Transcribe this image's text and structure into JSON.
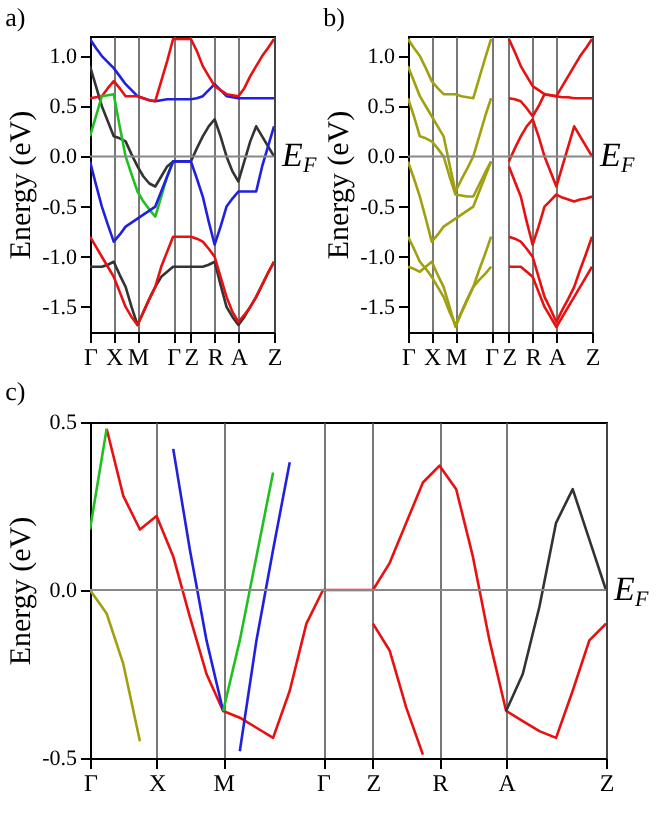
{
  "chart_data": [
    {
      "type": "line",
      "title": "a)",
      "ylabel": "Energy (eV)",
      "categories": [
        "Γ",
        null,
        null,
        null,
        "X",
        null,
        null,
        null,
        "M",
        null,
        null,
        null,
        null,
        null,
        "Γ",
        null,
        null,
        "Z",
        null,
        null,
        null,
        "R",
        null,
        null,
        null,
        "A",
        null,
        null,
        null,
        null,
        null,
        "Z"
      ],
      "ylim": [
        -1.75,
        1.2
      ],
      "yticks": [
        -1.5,
        {
          "value": -1,
          "label": "-1.0"
        },
        -0.5,
        {
          "value": 0,
          "label": "0.0"
        },
        0.5,
        {
          "value": 1,
          "label": "1.0"
        }
      ],
      "grid": "x",
      "ref_lines": [
        {
          "axis": "y",
          "value": 0,
          "label": "E$_{F}$",
          "color": "#888888"
        }
      ],
      "series": [
        {
          "color": "#2020e0",
          "values": [
            1.17,
            1.08,
            1.0,
            0.94,
            0.88,
            0.8,
            0.72,
            0.66,
            0.6,
            0.58,
            0.56,
            0.55,
            0.56,
            0.57,
            0.57,
            0.57,
            0.57,
            0.57,
            0.58,
            0.6,
            0.66,
            0.72,
            0.66,
            0.6,
            0.59,
            0.58,
            0.58,
            0.58,
            0.58,
            0.58,
            0.58,
            0.58
          ]
        },
        {
          "color": "#333333",
          "values": [
            0.9,
            0.7,
            0.5,
            0.35,
            0.2,
            0.18,
            0.15,
            0.02,
            -0.1,
            -0.2,
            -0.27,
            -0.3,
            -0.2,
            -0.1,
            -0.05,
            -0.05,
            -0.05,
            -0.05,
            0.08,
            0.2,
            0.3,
            0.37,
            0.2,
            0.0,
            -0.15,
            -0.25,
            -0.05,
            0.15,
            0.3,
            0.2,
            0.1,
            0.0
          ]
        },
        {
          "color": "#e81010",
          "values": [
            0.58,
            0.59,
            0.6,
            0.68,
            0.75,
            0.68,
            0.6,
            0.6,
            0.6,
            0.58,
            0.56,
            0.55,
            0.75,
            0.95,
            1.17,
            1.17,
            1.17,
            1.17,
            1.05,
            0.9,
            0.8,
            0.7,
            0.66,
            0.62,
            0.61,
            0.6,
            0.68,
            0.8,
            0.9,
            1.0,
            1.08,
            1.17
          ]
        },
        {
          "color": "#20c020",
          "values": [
            0.2,
            0.4,
            0.6,
            0.61,
            0.62,
            0.3,
            0.0,
            -0.18,
            -0.35,
            -0.45,
            -0.53,
            -0.6,
            -0.4,
            -0.2,
            -0.05,
            null,
            null,
            null,
            null,
            null,
            null,
            null,
            null,
            null,
            null,
            null,
            null,
            null,
            null,
            null,
            null,
            null
          ]
        },
        {
          "color": "#2020e0",
          "values": [
            -0.05,
            -0.28,
            -0.5,
            -0.68,
            -0.85,
            -0.78,
            -0.7,
            -0.66,
            -0.62,
            -0.58,
            -0.54,
            -0.5,
            -0.35,
            -0.2,
            -0.05,
            -0.05,
            -0.05,
            -0.05,
            -0.22,
            -0.4,
            -0.65,
            -0.88,
            -0.7,
            -0.5,
            -0.42,
            -0.35,
            -0.35,
            -0.35,
            -0.35,
            -0.1,
            0.1,
            0.3
          ]
        },
        {
          "color": "#333333",
          "values": [
            -1.1,
            -1.1,
            -1.1,
            -1.08,
            -1.05,
            -1.18,
            -1.3,
            -1.5,
            -1.68,
            -1.55,
            -1.42,
            -1.3,
            -1.2,
            -1.15,
            -1.1,
            -1.1,
            -1.1,
            -1.1,
            -1.1,
            -1.1,
            -1.08,
            -1.05,
            -1.28,
            -1.5,
            -1.6,
            -1.68,
            -1.6,
            -1.5,
            -1.4,
            -1.28,
            -1.16,
            -1.05
          ]
        },
        {
          "color": "#e81010",
          "values": [
            -0.8,
            -0.9,
            -1.0,
            -1.1,
            -1.2,
            -1.35,
            -1.5,
            -1.6,
            -1.68,
            -1.55,
            -1.42,
            -1.3,
            -1.1,
            -0.95,
            -0.8,
            -0.8,
            -0.8,
            -0.8,
            -0.82,
            -0.85,
            -0.92,
            -1.0,
            -1.2,
            -1.4,
            -1.55,
            -1.65,
            -1.58,
            -1.5,
            -1.4,
            -1.28,
            -1.16,
            -1.05
          ]
        }
      ]
    },
    {
      "type": "line",
      "title": "b)",
      "ylabel": "Energy (eV)",
      "categories": [
        "Γ",
        null,
        null,
        null,
        "X",
        null,
        null,
        null,
        "M",
        null,
        null,
        null,
        null,
        null,
        "Γ",
        null,
        null,
        "Z",
        null,
        null,
        null,
        "R",
        null,
        null,
        null,
        "A",
        null,
        null,
        null,
        null,
        null,
        "Z"
      ],
      "ylim": [
        -1.75,
        1.2
      ],
      "yticks": [
        -1.5,
        {
          "value": -1,
          "label": "-1.0"
        },
        -0.5,
        {
          "value": 0,
          "label": "0.0"
        },
        0.5,
        {
          "value": 1,
          "label": "1.0"
        }
      ],
      "grid": "x",
      "ref_lines": [
        {
          "axis": "y",
          "value": 0,
          "label": "E$_{F}$",
          "color": "#888888"
        }
      ],
      "series": [
        {
          "color": "#a0a010",
          "values": [
            1.17,
            1.08,
            1.0,
            0.88,
            0.75,
            0.68,
            0.62,
            0.62,
            0.62,
            0.6,
            0.59,
            0.58,
            0.78,
            0.98,
            1.17,
            null,
            null,
            null,
            null,
            null,
            null,
            null,
            null,
            null,
            null,
            null,
            null,
            null,
            null,
            null,
            null,
            null
          ]
        },
        {
          "color": "#a0a010",
          "values": [
            0.9,
            0.75,
            0.6,
            0.5,
            0.4,
            0.3,
            0.2,
            -0.08,
            -0.35,
            -0.23,
            -0.12,
            0.0,
            0.2,
            0.4,
            0.58,
            null,
            null,
            null,
            null,
            null,
            null,
            null,
            null,
            null,
            null,
            null,
            null,
            null,
            null,
            null,
            null,
            null
          ]
        },
        {
          "color": "#a0a010",
          "values": [
            0.58,
            0.4,
            0.2,
            0.18,
            0.15,
            0.08,
            0.0,
            -0.2,
            -0.38,
            -0.39,
            -0.4,
            -0.4,
            -0.28,
            -0.16,
            -0.05,
            null,
            null,
            null,
            null,
            null,
            null,
            null,
            null,
            null,
            null,
            null,
            null,
            null,
            null,
            null,
            null,
            null
          ]
        },
        {
          "color": "#a0a010",
          "values": [
            -0.05,
            -0.22,
            -0.4,
            -0.62,
            -0.85,
            -0.78,
            -0.7,
            -0.66,
            -0.62,
            -0.58,
            -0.54,
            -0.5,
            -0.35,
            -0.2,
            -0.05,
            null,
            null,
            null,
            null,
            null,
            null,
            null,
            null,
            null,
            null,
            null,
            null,
            null,
            null,
            null,
            null,
            null
          ]
        },
        {
          "color": "#a0a010",
          "values": [
            -0.8,
            -0.92,
            -1.05,
            -1.12,
            -1.2,
            -1.3,
            -1.4,
            -1.55,
            -1.68,
            -1.55,
            -1.42,
            -1.3,
            -1.13,
            -0.97,
            -0.8,
            null,
            null,
            null,
            null,
            null,
            null,
            null,
            null,
            null,
            null,
            null,
            null,
            null,
            null,
            null,
            null,
            null
          ]
        },
        {
          "color": "#a0a010",
          "values": [
            -1.1,
            -1.12,
            -1.15,
            -1.1,
            -1.05,
            -1.18,
            -1.3,
            -1.5,
            -1.7,
            -1.56,
            -1.43,
            -1.3,
            -1.23,
            -1.17,
            -1.1,
            null,
            null,
            null,
            null,
            null,
            null,
            null,
            null,
            null,
            null,
            null,
            null,
            null,
            null,
            null,
            null,
            null
          ]
        },
        {
          "color": "#e81010",
          "values": [
            null,
            null,
            null,
            null,
            null,
            null,
            null,
            null,
            null,
            null,
            null,
            null,
            null,
            null,
            null,
            null,
            null,
            1.17,
            1.04,
            0.9,
            0.8,
            0.7,
            0.66,
            0.62,
            0.61,
            0.6,
            0.7,
            0.8,
            0.9,
            1.0,
            1.08,
            1.17
          ]
        },
        {
          "color": "#e81010",
          "values": [
            null,
            null,
            null,
            null,
            null,
            null,
            null,
            null,
            null,
            null,
            null,
            null,
            null,
            null,
            null,
            null,
            null,
            0.58,
            0.57,
            0.55,
            0.48,
            0.4,
            0.5,
            0.62,
            0.61,
            0.6,
            0.59,
            0.59,
            0.58,
            0.58,
            0.58,
            0.58
          ]
        },
        {
          "color": "#e81010",
          "values": [
            null,
            null,
            null,
            null,
            null,
            null,
            null,
            null,
            null,
            null,
            null,
            null,
            null,
            null,
            null,
            null,
            null,
            -0.05,
            0.08,
            0.2,
            0.3,
            0.37,
            0.2,
            0.0,
            -0.15,
            -0.3,
            -0.1,
            0.1,
            0.3,
            0.2,
            0.1,
            0.0
          ]
        },
        {
          "color": "#e81010",
          "values": [
            null,
            null,
            null,
            null,
            null,
            null,
            null,
            null,
            null,
            null,
            null,
            null,
            null,
            null,
            null,
            null,
            null,
            -0.1,
            -0.25,
            -0.4,
            -0.65,
            -0.88,
            -0.7,
            -0.5,
            -0.44,
            -0.38,
            -0.41,
            -0.43,
            -0.45,
            -0.43,
            -0.42,
            -0.4
          ]
        },
        {
          "color": "#e81010",
          "values": [
            null,
            null,
            null,
            null,
            null,
            null,
            null,
            null,
            null,
            null,
            null,
            null,
            null,
            null,
            null,
            null,
            null,
            -0.8,
            -0.82,
            -0.85,
            -0.92,
            -1.0,
            -1.2,
            -1.4,
            -1.52,
            -1.65,
            -1.53,
            -1.42,
            -1.3,
            -1.13,
            -0.97,
            -0.8
          ]
        },
        {
          "color": "#e81010",
          "values": [
            null,
            null,
            null,
            null,
            null,
            null,
            null,
            null,
            null,
            null,
            null,
            null,
            null,
            null,
            null,
            null,
            null,
            -1.1,
            -1.1,
            -1.1,
            -1.15,
            -1.2,
            -1.35,
            -1.5,
            -1.6,
            -1.7,
            -1.6,
            -1.5,
            -1.4,
            -1.3,
            -1.2,
            -1.1
          ]
        }
      ]
    },
    {
      "type": "line",
      "title": "c)",
      "ylabel": "Energy (eV)",
      "categories": [
        "Γ",
        null,
        null,
        null,
        "X",
        null,
        null,
        null,
        "M",
        null,
        null,
        null,
        null,
        null,
        "Γ",
        null,
        null,
        "Z",
        null,
        null,
        null,
        "R",
        null,
        null,
        null,
        "A",
        null,
        null,
        null,
        null,
        null,
        "Z"
      ],
      "ylim": [
        -0.5,
        0.5
      ],
      "yticks": [
        -0.5,
        {
          "value": 0,
          "label": "0.0"
        },
        0.5
      ],
      "grid": "x",
      "ref_lines": [
        {
          "axis": "y",
          "value": 0,
          "label": "E$_{F}$",
          "color": "#888888"
        }
      ],
      "series": [
        {
          "color": "#e81010",
          "values": [
            null,
            0.48,
            0.28,
            0.18,
            0.22,
            0.1,
            -0.08,
            -0.25,
            -0.36,
            -0.38,
            -0.41,
            -0.44,
            -0.3,
            -0.1,
            0.0,
            0.0,
            0.0,
            0.0,
            0.08,
            0.2,
            0.32,
            0.37,
            0.3,
            0.1,
            -0.15,
            -0.36,
            -0.39,
            -0.42,
            -0.44,
            -0.3,
            -0.15,
            -0.1
          ]
        },
        {
          "color": "#a0a010",
          "values": [
            0.0,
            -0.07,
            -0.22,
            -0.45,
            null,
            null,
            null,
            null,
            null,
            null,
            null,
            null,
            null,
            null,
            null,
            null,
            null,
            null,
            null,
            null,
            null,
            null,
            null,
            null,
            null,
            null,
            null,
            null,
            null,
            null,
            null,
            null
          ]
        },
        {
          "color": "#2020e0",
          "values": [
            null,
            null,
            null,
            null,
            null,
            0.42,
            0.12,
            -0.15,
            -0.36,
            null,
            null,
            null,
            null,
            null,
            null,
            null,
            null,
            null,
            null,
            null,
            null,
            null,
            null,
            null,
            null,
            null,
            null,
            null,
            null,
            null,
            null,
            null
          ]
        },
        {
          "color": "#20c020",
          "values": [
            0.18,
            0.48,
            null,
            null,
            null,
            null,
            null,
            null,
            -0.36,
            -0.15,
            0.1,
            0.35,
            null,
            null,
            null,
            null,
            null,
            null,
            null,
            null,
            null,
            null,
            null,
            null,
            null,
            null,
            null,
            null,
            null,
            null,
            null,
            null
          ]
        },
        {
          "color": "#2020e0",
          "values": [
            null,
            null,
            null,
            null,
            null,
            null,
            null,
            null,
            null,
            -0.48,
            -0.15,
            0.12,
            0.38,
            null,
            null,
            null,
            null,
            null,
            null,
            null,
            null,
            null,
            null,
            null,
            null,
            null,
            null,
            null,
            null,
            null,
            null,
            null
          ]
        },
        {
          "color": "#e81010",
          "values": [
            null,
            null,
            null,
            null,
            null,
            null,
            null,
            null,
            null,
            null,
            null,
            null,
            null,
            null,
            null,
            null,
            null,
            -0.1,
            -0.18,
            -0.35,
            -0.49,
            null,
            null,
            null,
            null,
            null,
            null,
            null,
            null,
            null,
            null,
            null
          ]
        },
        {
          "color": "#333333",
          "values": [
            null,
            null,
            null,
            null,
            null,
            null,
            null,
            null,
            null,
            null,
            null,
            null,
            null,
            null,
            null,
            null,
            null,
            null,
            null,
            null,
            null,
            null,
            null,
            null,
            null,
            -0.36,
            -0.25,
            -0.05,
            0.2,
            0.3,
            0.15,
            0.0
          ]
        }
      ]
    }
  ]
}
